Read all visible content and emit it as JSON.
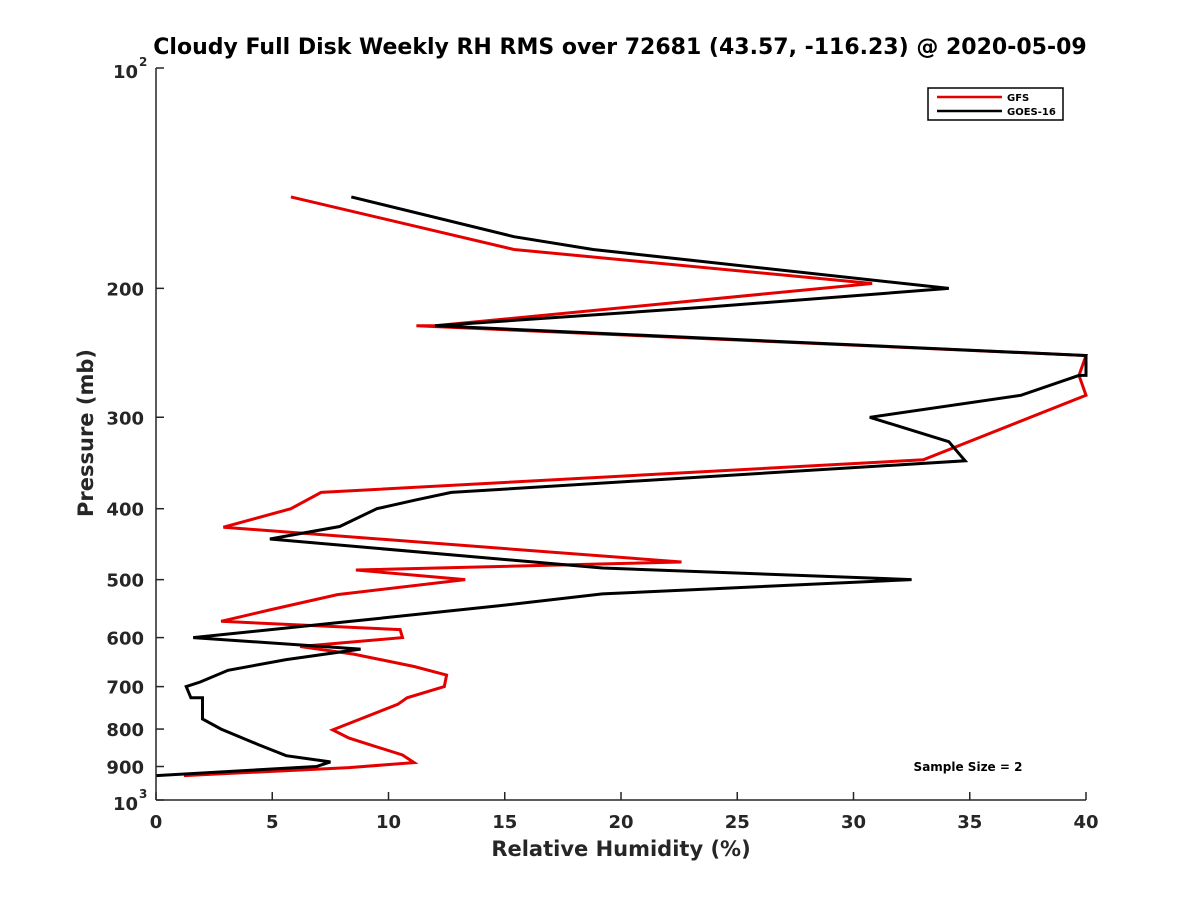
{
  "chart_data": {
    "type": "line",
    "title": "Cloudy Full Disk Weekly RH RMS over 72681 (43.57, -116.23) @ 2020-05-09",
    "xlabel": "Relative Humidity (%)",
    "ylabel": "Pressure (mb)",
    "xlim": [
      0,
      40
    ],
    "ylim": [
      100,
      1000
    ],
    "y_scale": "log",
    "y_reversed": true,
    "x_ticks": [
      0,
      5,
      10,
      15,
      20,
      25,
      30,
      35,
      40
    ],
    "y_ticks": [
      {
        "value": 100,
        "label": "10",
        "exp": "2"
      },
      {
        "value": 200,
        "label": "200"
      },
      {
        "value": 300,
        "label": "300"
      },
      {
        "value": 400,
        "label": "400"
      },
      {
        "value": 500,
        "label": "500"
      },
      {
        "value": 600,
        "label": "600"
      },
      {
        "value": 700,
        "label": "700"
      },
      {
        "value": 800,
        "label": "800"
      },
      {
        "value": 900,
        "label": "900"
      },
      {
        "value": 1000,
        "label": "10",
        "exp": "3"
      }
    ],
    "grid": false,
    "legend_position": "top-right",
    "annotation": "Sample Size = 2",
    "series": [
      {
        "name": "GFS",
        "color": "#e50000",
        "points": [
          [
            5.8,
            150
          ],
          [
            15.4,
            177
          ],
          [
            30.8,
            197
          ],
          [
            12.0,
            225
          ],
          [
            11.2,
            225
          ],
          [
            40.0,
            247
          ],
          [
            39.7,
            263
          ],
          [
            40.0,
            280
          ],
          [
            33.0,
            343
          ],
          [
            7.1,
            380
          ],
          [
            5.8,
            400
          ],
          [
            2.9,
            424
          ],
          [
            22.6,
            473
          ],
          [
            8.6,
            485
          ],
          [
            13.3,
            500
          ],
          [
            7.8,
            524
          ],
          [
            4.9,
            550
          ],
          [
            2.8,
            570
          ],
          [
            10.5,
            585
          ],
          [
            10.6,
            600
          ],
          [
            6.2,
            617
          ],
          [
            8.5,
            632
          ],
          [
            11.1,
            657
          ],
          [
            12.5,
            675
          ],
          [
            12.4,
            700
          ],
          [
            10.8,
            725
          ],
          [
            10.4,
            740
          ],
          [
            7.6,
            802
          ],
          [
            8.3,
            823
          ],
          [
            10.6,
            868
          ],
          [
            11.1,
            889
          ],
          [
            8.3,
            903
          ],
          [
            1.2,
            926
          ]
        ]
      },
      {
        "name": "GOES-16",
        "color": "#000000",
        "points": [
          [
            8.4,
            150
          ],
          [
            15.4,
            170
          ],
          [
            18.8,
            177
          ],
          [
            34.1,
            200
          ],
          [
            23.8,
            212
          ],
          [
            12.0,
            225
          ],
          [
            40.0,
            247
          ],
          [
            40.0,
            263
          ],
          [
            39.7,
            263
          ],
          [
            37.2,
            280
          ],
          [
            30.7,
            300
          ],
          [
            34.1,
            324
          ],
          [
            34.8,
            344
          ],
          [
            12.7,
            380
          ],
          [
            11.2,
            389
          ],
          [
            9.5,
            400
          ],
          [
            7.9,
            423
          ],
          [
            4.9,
            440
          ],
          [
            19.2,
            482
          ],
          [
            32.5,
            500
          ],
          [
            19.2,
            523
          ],
          [
            14.7,
            543
          ],
          [
            8.4,
            570
          ],
          [
            1.6,
            600
          ],
          [
            8.8,
            622
          ],
          [
            5.6,
            643
          ],
          [
            3.1,
            665
          ],
          [
            1.9,
            690
          ],
          [
            1.3,
            700
          ],
          [
            1.5,
            725
          ],
          [
            2.0,
            725
          ],
          [
            2.0,
            775
          ],
          [
            2.8,
            800
          ],
          [
            4.4,
            840
          ],
          [
            5.6,
            870
          ],
          [
            7.5,
            887
          ],
          [
            6.9,
            900
          ],
          [
            0.0,
            926
          ]
        ]
      }
    ]
  }
}
